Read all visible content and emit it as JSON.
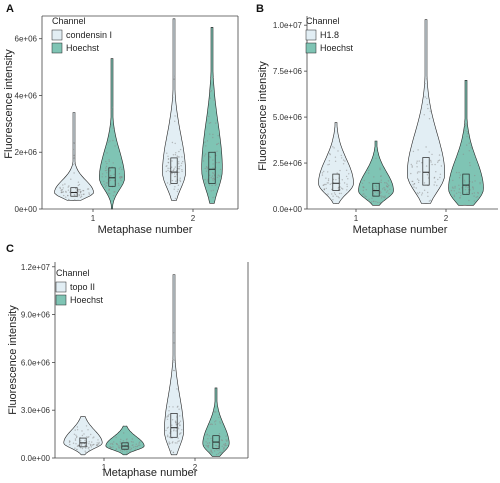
{
  "colors": {
    "light": "#e2eef4",
    "teal": "#7fc4b4",
    "stroke": "#222222",
    "jitter": "#8a8a8a",
    "axis": "#444444"
  },
  "chart_data": [
    {
      "panel": "A",
      "type": "violin",
      "xlabel": "Metaphase number",
      "ylabel": "Fluorescence intensity",
      "categories": [
        "1",
        "2"
      ],
      "ylim": [
        0,
        6800000
      ],
      "yticks": [
        0,
        2000000,
        4000000,
        6000000
      ],
      "ytick_labels": [
        "0e+00",
        "2e+06",
        "4e+06",
        "6e+06"
      ],
      "legend": {
        "title": "Channel",
        "position": "top-left",
        "entries": [
          "condensin I",
          "Hoechst"
        ]
      },
      "series": [
        {
          "name": "condensin I",
          "color": "light",
          "groups": [
            {
              "category": "1",
              "min": 300000,
              "q1": 450000,
              "median": 580000,
              "q3": 750000,
              "max": 3400000,
              "mode": 580000,
              "width": 0.85
            },
            {
              "category": "2",
              "min": 300000,
              "q1": 900000,
              "median": 1300000,
              "q3": 1800000,
              "max": 6700000,
              "mode": 1300000,
              "width": 0.5
            }
          ]
        },
        {
          "name": "Hoechst",
          "color": "teal",
          "groups": [
            {
              "category": "1",
              "min": 0,
              "q1": 800000,
              "median": 1100000,
              "q3": 1450000,
              "max": 5300000,
              "mode": 1100000,
              "width": 0.55
            },
            {
              "category": "2",
              "min": 200000,
              "q1": 900000,
              "median": 1400000,
              "q3": 2000000,
              "max": 6400000,
              "mode": 1400000,
              "width": 0.45
            }
          ]
        }
      ]
    },
    {
      "panel": "B",
      "type": "violin",
      "xlabel": "Metaphase number",
      "ylabel": "Fluorescence intensity",
      "categories": [
        "1",
        "2"
      ],
      "ylim": [
        0,
        10500000
      ],
      "yticks": [
        0,
        2500000,
        5000000,
        7500000,
        10000000
      ],
      "ytick_labels": [
        "0.0e+00",
        "2.5e+06",
        "5.0e+06",
        "7.5e+06",
        "1.0e+07"
      ],
      "legend": {
        "title": "Channel",
        "position": "top-left",
        "entries": [
          "H1.8",
          "Hoechst"
        ]
      },
      "series": [
        {
          "name": "H1.8",
          "color": "light",
          "groups": [
            {
              "category": "1",
              "min": 300000,
              "q1": 1000000,
              "median": 1400000,
              "q3": 1900000,
              "max": 4700000,
              "mode": 1400000,
              "width": 0.7
            },
            {
              "category": "2",
              "min": 300000,
              "q1": 1300000,
              "median": 2000000,
              "q3": 2800000,
              "max": 10300000,
              "mode": 1900000,
              "width": 0.75
            }
          ]
        },
        {
          "name": "Hoechst",
          "color": "teal",
          "groups": [
            {
              "category": "1",
              "min": 200000,
              "q1": 700000,
              "median": 1000000,
              "q3": 1400000,
              "max": 3700000,
              "mode": 1000000,
              "width": 0.7
            },
            {
              "category": "2",
              "min": 200000,
              "q1": 800000,
              "median": 1300000,
              "q3": 1900000,
              "max": 7000000,
              "mode": 1100000,
              "width": 0.7
            }
          ]
        }
      ]
    },
    {
      "panel": "C",
      "type": "violin",
      "xlabel": "Metaphase number",
      "ylabel": "Fluorescence intensity",
      "categories": [
        "1",
        "2"
      ],
      "ylim": [
        0,
        12300000
      ],
      "yticks": [
        0,
        3000000,
        6000000,
        9000000,
        12000000
      ],
      "ytick_labels": [
        "0.0e+00",
        "3.0e+06",
        "6.0e+06",
        "9.0e+06",
        "1.2e+07"
      ],
      "legend": {
        "title": "Channel",
        "position": "top-left",
        "entries": [
          "topo II",
          "Hoechst"
        ]
      },
      "series": [
        {
          "name": "topo II",
          "color": "light",
          "groups": [
            {
              "category": "1",
              "min": 200000,
              "q1": 700000,
              "median": 950000,
              "q3": 1250000,
              "max": 2600000,
              "mode": 950000,
              "width": 0.8
            },
            {
              "category": "2",
              "min": 200000,
              "q1": 1300000,
              "median": 1900000,
              "q3": 2800000,
              "max": 11500000,
              "mode": 1700000,
              "width": 0.4
            }
          ]
        },
        {
          "name": "Hoechst",
          "color": "teal",
          "groups": [
            {
              "category": "1",
              "min": 200000,
              "q1": 550000,
              "median": 750000,
              "q3": 950000,
              "max": 2000000,
              "mode": 750000,
              "width": 0.8
            },
            {
              "category": "2",
              "min": 100000,
              "q1": 600000,
              "median": 1000000,
              "q3": 1400000,
              "max": 4400000,
              "mode": 900000,
              "width": 0.55
            }
          ]
        }
      ]
    }
  ]
}
